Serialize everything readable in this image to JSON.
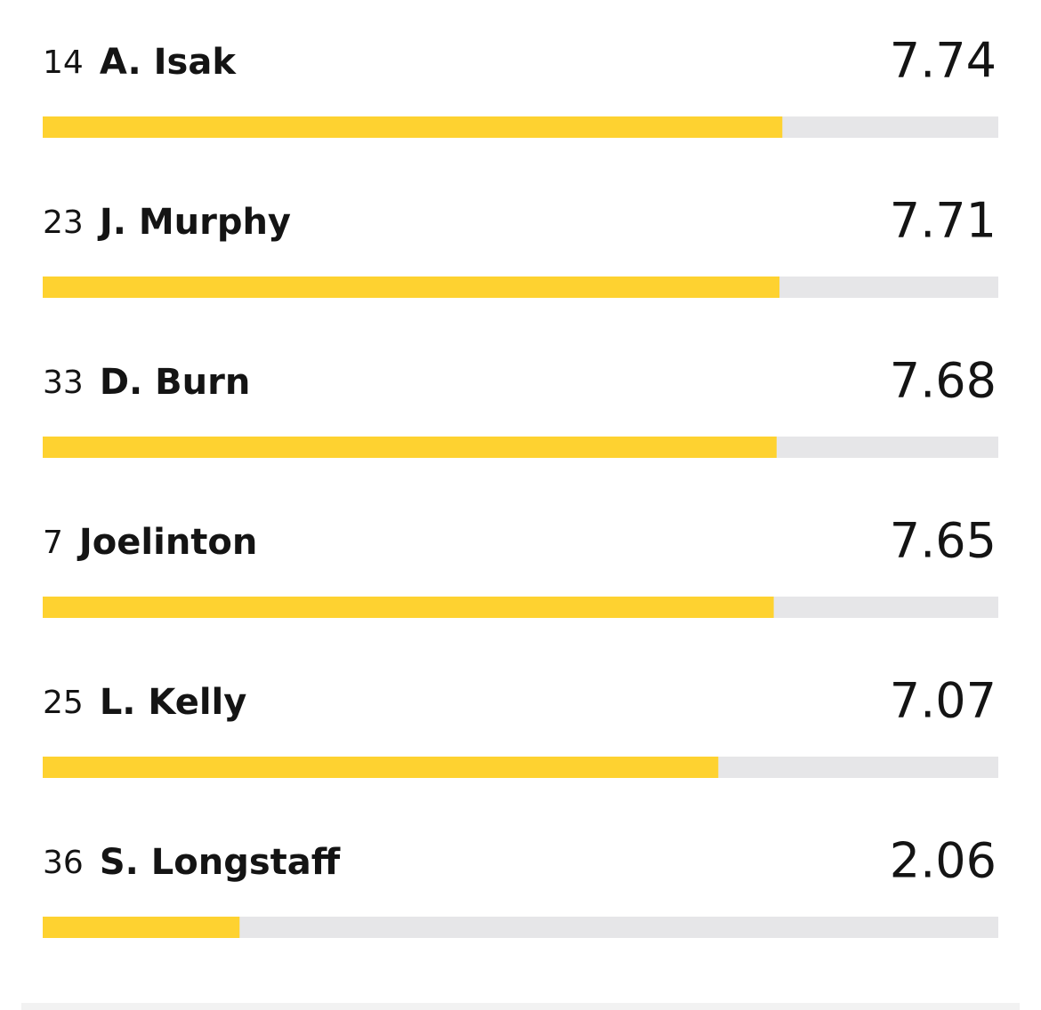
{
  "chart_data": {
    "type": "bar",
    "shirt_numbers": [
      14,
      23,
      33,
      7,
      25,
      36
    ],
    "categories": [
      "A. Isak",
      "J. Murphy",
      "D. Burn",
      "Joelinton",
      "L. Kelly",
      "S. Longstaff"
    ],
    "values": [
      7.74,
      7.71,
      7.68,
      7.65,
      7.07,
      2.06
    ],
    "color": "#fed230",
    "xlim": [
      0,
      10
    ]
  }
}
